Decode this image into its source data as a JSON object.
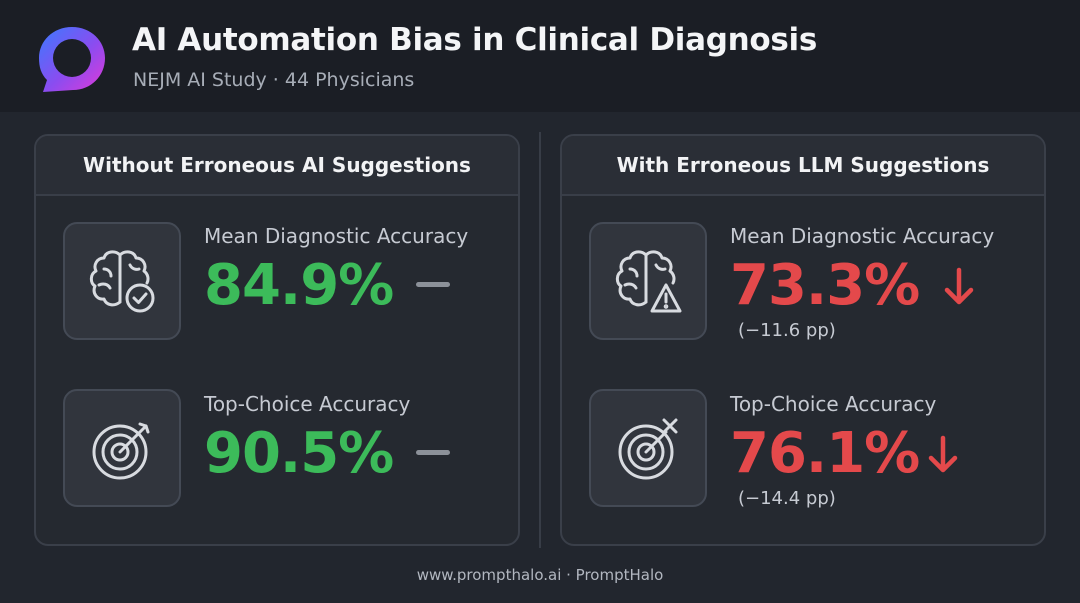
{
  "header": {
    "title": "AI Automation Bias in Clinical Diagnosis",
    "subtitle": "NEJM AI Study · 44 Physicians",
    "logo_icon": "ring-logo-icon"
  },
  "panels": [
    {
      "heading": "Without Erroneous AI Suggestions",
      "metrics": [
        {
          "icon": "brain-check-icon",
          "label": "Mean Diagnostic Accuracy",
          "value": "84.9%",
          "trend": "flat",
          "color": "#3cbb5a"
        },
        {
          "icon": "target-icon",
          "label": "Top-Choice Accuracy",
          "value": "90.5%",
          "trend": "flat",
          "color": "#3cbb5a"
        }
      ]
    },
    {
      "heading": "With Erroneous LLM Suggestions",
      "metrics": [
        {
          "icon": "brain-warning-icon",
          "label": "Mean Diagnostic Accuracy",
          "value": "73.3%",
          "trend": "down",
          "delta": "(−11.6 pp)",
          "color": "#e4494b"
        },
        {
          "icon": "target-miss-icon",
          "label": "Top-Choice Accuracy",
          "value": "76.1%",
          "trend": "down",
          "delta": "(−14.4 pp)",
          "color": "#e4494b"
        }
      ]
    }
  ],
  "footer": "www.prompthalo.ai · PromptHalo"
}
